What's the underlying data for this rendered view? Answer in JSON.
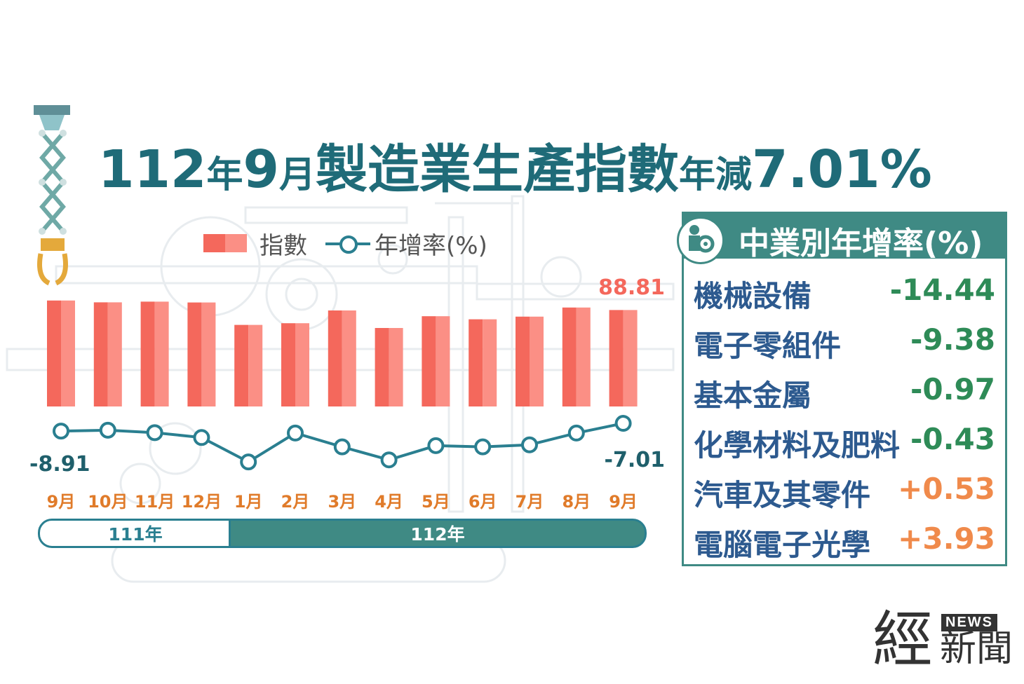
{
  "title": {
    "part1": "112",
    "part2": "年",
    "part3": "9",
    "part4": "月",
    "part5": "製造業生產指數",
    "part6": "年減",
    "part7": "7.01%"
  },
  "legend": {
    "index_label": "指數",
    "rate_label": "年增率(%)"
  },
  "colors": {
    "bar": "#f4685c",
    "bar_light": "#fb8f85",
    "line": "#2a7f90",
    "teal": "#3f8a84",
    "month_label": "#e07b2a",
    "negative_value": "#2e8b57",
    "positive_value": "#f08a4b",
    "title": "#1f6b78"
  },
  "chart_data": {
    "type": "bar+line",
    "categories": [
      "9月",
      "10月",
      "11月",
      "12月",
      "1月",
      "2月",
      "3月",
      "4月",
      "5月",
      "6月",
      "7月",
      "8月",
      "9月"
    ],
    "year_groups": [
      {
        "label": "111年",
        "count": 4
      },
      {
        "label": "112年",
        "count": 9
      }
    ],
    "series": [
      {
        "name": "指數",
        "type": "bar",
        "values": [
          95.6,
          94.3,
          94.8,
          94.2,
          78.2,
          79.4,
          88.5,
          76.0,
          84.4,
          82.2,
          84.1,
          90.6,
          88.81
        ]
      },
      {
        "name": "年增率(%)",
        "type": "line",
        "values": [
          -8.91,
          -8.7,
          -9.3,
          -10.5,
          -16.5,
          -9.4,
          -12.8,
          -16.0,
          -12.5,
          -12.8,
          -12.3,
          -9.4,
          -7.01
        ]
      }
    ],
    "annotations": {
      "first_rate": "-8.91",
      "last_rate": "-7.01",
      "last_index": "88.81"
    }
  },
  "panel": {
    "title": "中業別年增率(%)",
    "rows": [
      {
        "name": "機械設備",
        "value": "-14.44",
        "sign": "neg"
      },
      {
        "name": "電子零組件",
        "value": "-9.38",
        "sign": "neg"
      },
      {
        "name": "基本金屬",
        "value": "-0.97",
        "sign": "neg"
      },
      {
        "name": "化學材料及肥料",
        "value": "-0.43",
        "sign": "neg"
      },
      {
        "name": "汽車及其零件",
        "value": "+0.53",
        "sign": "pos"
      },
      {
        "name": "電腦電子光學",
        "value": "+3.93",
        "sign": "pos"
      }
    ]
  },
  "logo": {
    "jing": "經",
    "news": "NEWS",
    "xinwen": "新聞"
  }
}
